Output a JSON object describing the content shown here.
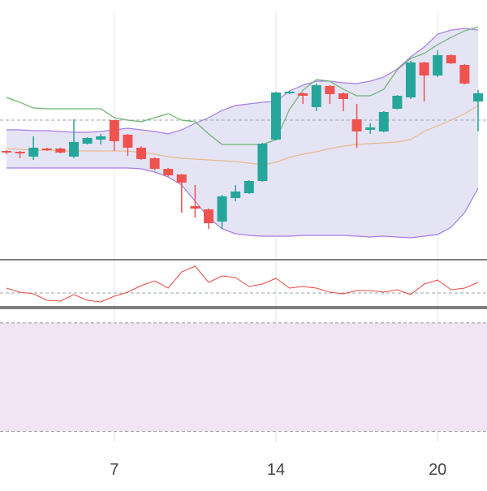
{
  "chart_data": [
    {
      "type": "candlestick",
      "categories": [
        null,
        null,
        null,
        null,
        null,
        null,
        null,
        null,
        "7",
        null,
        null,
        null,
        null,
        null,
        null,
        null,
        null,
        null,
        null,
        null,
        "14",
        null,
        null,
        null,
        null,
        null,
        null,
        null,
        null,
        null,
        null,
        null,
        "20",
        null,
        null,
        null
      ],
      "open": [
        129,
        128,
        122,
        132,
        132,
        122,
        138,
        143,
        167,
        149,
        133,
        120,
        107,
        100,
        61,
        57,
        42,
        71,
        77,
        92,
        143,
        200,
        200,
        183,
        209,
        200,
        168,
        155,
        153,
        181,
        195,
        238,
        222,
        247,
        235,
        190
      ],
      "high": [
        130,
        129,
        147,
        133,
        133,
        168,
        146,
        150,
        167,
        150,
        135,
        121,
        108,
        101,
        87,
        58,
        75,
        87,
        93,
        139,
        202,
        203,
        201,
        212,
        210,
        201,
        187,
        163,
        178,
        198,
        240,
        239,
        253,
        248,
        236,
        204
      ],
      "low": [
        125,
        120,
        118,
        129,
        126,
        120,
        137,
        137,
        129,
        123,
        118,
        105,
        97,
        53,
        47,
        33,
        33,
        67,
        76,
        91,
        142,
        199,
        187,
        178,
        187,
        178,
        133,
        150,
        152,
        180,
        193,
        190,
        220,
        236,
        211,
        153
      ],
      "close": [
        127,
        126,
        133,
        130,
        127,
        140,
        145,
        147,
        141,
        133,
        119,
        107,
        99,
        90,
        58,
        40,
        73,
        79,
        92,
        138,
        201,
        202,
        197,
        210,
        199,
        193,
        153,
        158,
        177,
        197,
        238,
        222,
        247,
        237,
        212,
        200
      ],
      "up_color": "#26a69a",
      "down_color": "#ef5350",
      "series": [
        {
          "color": "#a77ce6",
          "values": [
            155,
            155,
            154,
            154,
            153,
            152,
            152,
            153,
            155,
            157,
            155,
            153,
            150,
            155,
            163,
            170,
            179,
            185,
            187,
            189,
            190,
            203,
            210,
            215,
            215,
            213,
            212,
            215,
            220,
            230,
            245,
            257,
            273,
            278,
            280,
            278
          ]
        },
        {
          "color": "#a77ce6",
          "values": [
            108,
            108,
            108,
            108,
            108,
            108,
            108,
            108,
            108,
            108,
            107,
            103,
            97,
            87,
            67,
            47,
            33,
            27,
            25,
            24,
            24,
            24,
            25,
            25,
            25,
            25,
            24,
            23,
            24,
            23,
            22,
            24,
            26,
            35,
            53,
            83
          ]
        },
        {
          "color": "#e9b98f",
          "values": [
            132,
            131,
            130,
            130,
            129,
            129,
            129,
            129,
            129,
            129,
            127,
            125,
            122,
            120,
            119,
            118,
            117,
            116,
            114,
            112,
            115,
            121,
            125,
            128,
            132,
            135,
            137,
            138,
            139,
            140,
            143,
            153,
            160,
            167,
            175,
            185
          ]
        },
        {
          "color": "#6bb36f",
          "values": [
            195,
            189,
            182,
            181,
            181,
            181,
            181,
            181,
            170,
            167,
            165,
            170,
            175,
            167,
            165,
            150,
            137,
            137,
            137,
            137,
            143,
            180,
            204,
            217,
            215,
            205,
            197,
            197,
            205,
            229,
            243,
            249,
            260,
            269,
            277,
            282
          ]
        }
      ],
      "band_fill": "#e5e4f5",
      "hlines": [
        167
      ],
      "ylim": [
        0,
        300
      ]
    },
    {
      "type": "line",
      "values": [
        23,
        18,
        16,
        8,
        7,
        15,
        8,
        6,
        13,
        18,
        26,
        32,
        23,
        43,
        50,
        30,
        38,
        36,
        25,
        28,
        35,
        23,
        25,
        23,
        18,
        16,
        20,
        20,
        18,
        21,
        15,
        28,
        33,
        21,
        23,
        30
      ],
      "color": "#e8493f",
      "hlines": [
        17
      ],
      "ylim": [
        0,
        58
      ]
    },
    {
      "type": "band",
      "band": [
        20,
        80
      ],
      "color": "#f1e5f3",
      "ylim": [
        14,
        88
      ]
    }
  ]
}
